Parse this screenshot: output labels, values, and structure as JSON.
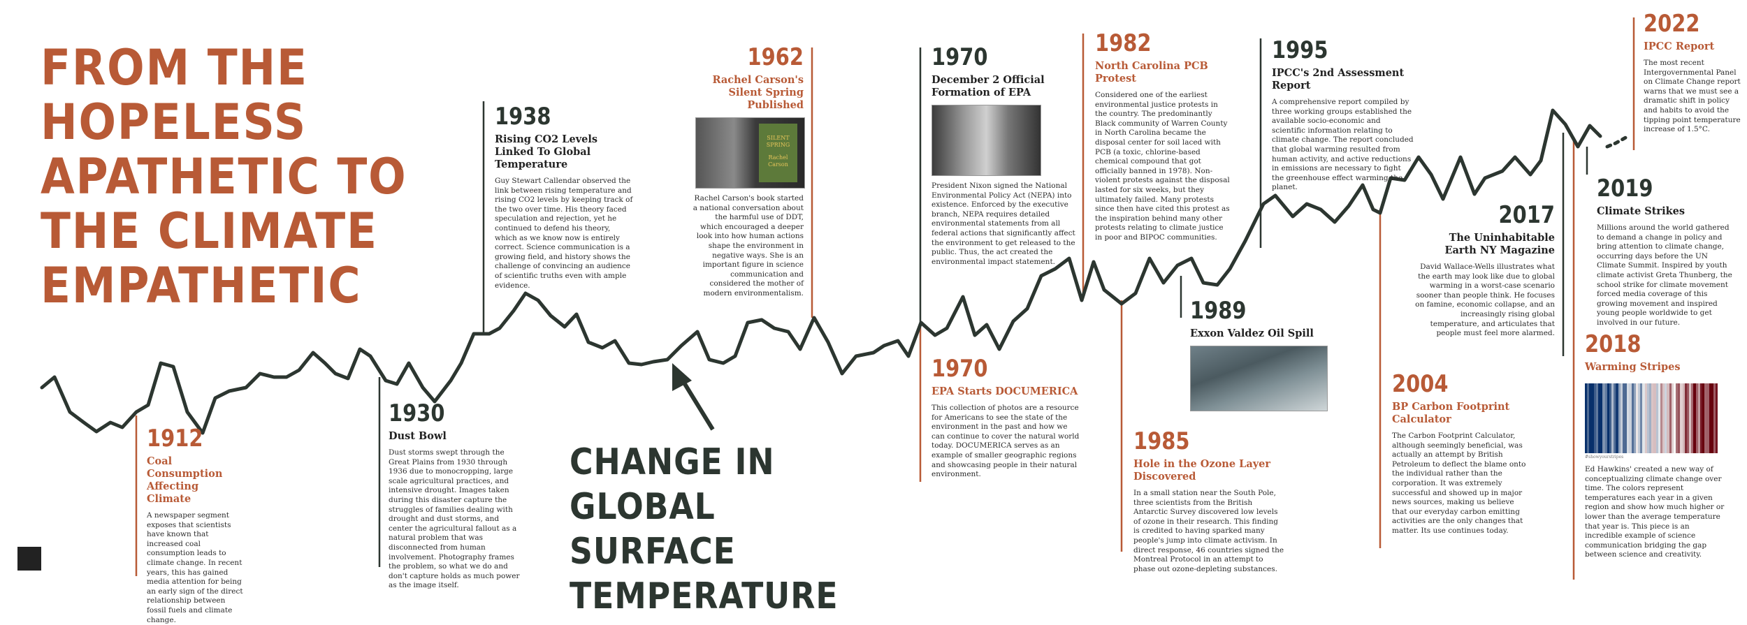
{
  "title": "FROM THE HOPELESS APATHETIC TO THE CLIMATE EMPATHETIC",
  "subtitle": "CHANGE IN GLOBAL SURFACE TEMPERATURE",
  "colors": {
    "rust": "#b85a36",
    "dark": "#2c3630"
  },
  "events": [
    {
      "year": "1912",
      "heading": "Coal Consumption Affecting Climate",
      "body": "A newspaper segment exposes that scientists have known that increased coal consumption leads to climate change. In recent years, this has gained media attention for being an early sign of the direct relationship between fossil fuels and climate change."
    },
    {
      "year": "1930",
      "heading": "Dust Bowl",
      "body": "Dust storms swept through the Great Plains from 1930 through 1936 due to monocropping, large scale agricultural practices, and intensive drought. Images taken during this disaster capture the struggles of families dealing with drought and dust storms, and center the agricultural fallout as a natural problem that was disconnected from human involvement. Photography frames the problem, so what we do and don't capture holds as much power as the image itself."
    },
    {
      "year": "1938",
      "heading": "Rising CO2 Levels Linked To Global Temperature",
      "body": "Guy Stewart Callendar observed the link between rising temperature and rising CO2 levels by keeping track of the two over time. His theory faced speculation and rejection, yet he continued to defend his theory, which as we know now is entirely correct. Science communication is a growing field, and history shows the challenge of convincing an audience of scientific truths even with ample evidence."
    },
    {
      "year": "1962",
      "heading": "Rachel Carson's Silent Spring Published",
      "body": "Rachel Carson's book started a national conversation about the harmful use of DDT, which encouraged a deeper look into how human actions shape the environment in negative ways. She is an important figure in science communication and considered the mother of modern environmentalism.",
      "book_text": [
        "SILENT",
        "SPRING",
        "Rachel",
        "Carson"
      ]
    },
    {
      "year": "1970",
      "heading": "December 2 Official Formation of EPA",
      "body": "President Nixon signed the National Environmental Policy Act (NEPA) into existence. Enforced by the executive branch, NEPA requires detailed environmental statements from all federal actions that significantly affect the environment to get released to the public. Thus, the act created the environmental impact statement."
    },
    {
      "year": "1970",
      "heading": "EPA Starts DOCUMERICA",
      "body": "This collection of photos are a resource for Americans to see the state of the environment in the past and how we can continue to cover the natural world today. DOCUMERICA serves as an example of smaller geographic regions and showcasing people in their natural environment."
    },
    {
      "year": "1982",
      "heading": "North Carolina PCB Protest",
      "body": "Considered one of the earliest environmental justice protests in the country. The predominantly Black community of Warren County in North Carolina became the disposal center for soil laced with PCB (a toxic, chlorine-based chemical compound that got officially banned in 1978). Non-violent protests against the disposal lasted for six weeks, but they ultimately failed. Many protests since then have cited this protest as the inspiration behind many other protests relating to climate justice in poor and BIPOC communities."
    },
    {
      "year": "1985",
      "heading": "Hole in the Ozone Layer Discovered",
      "body": "In a small station near the South Pole, three scientists from the British Antarctic Survey discovered low levels of ozone in their research. This finding is credited to having sparked many people's jump into climate activism. In direct response, 46 countries signed the Montreal Protocol in an attempt to phase out ozone-depleting substances."
    },
    {
      "year": "1989",
      "heading": "Exxon Valdez Oil Spill",
      "body": ""
    },
    {
      "year": "1995",
      "heading": "IPCC's 2nd Assessment Report",
      "body": "A comprehensive report compiled by three working groups established the available socio-economic and scientific information relating to climate change. The report concluded that global warming resulted from human activity, and active reductions in emissions are necessary to fight the greenhouse effect warming the planet."
    },
    {
      "year": "2004",
      "heading": "BP Carbon Footprint Calculator",
      "body": "The Carbon Footprint Calculator, although seemingly beneficial, was actually an attempt by British Petroleum to deflect the blame onto the individual rather than the corporation. It was extremely successful and showed up in major news sources, making us believe that our everyday carbon emitting activities are the only changes that matter. Its use continues today."
    },
    {
      "year": "2017",
      "heading": "The Uninhabitable Earth NY Magazine",
      "body": "David Wallace-Wells illustrates what the earth may look like due to global warming in a worst-case scenario sooner than people think. He focuses on famine, economic collapse, and an increasingly rising global temperature, and articulates that people must feel more alarmed."
    },
    {
      "year": "2018",
      "heading": "Warming Stripes",
      "caption": "#showyourstripes",
      "body": "Ed Hawkins' created a new way of conceptualizing climate change over time. The colors represent temperatures each year in a given region and show how much higher or lower than the average temperature that year is. This piece is an incredible example of science communication bridging the gap between science and creativity."
    },
    {
      "year": "2019",
      "heading": "Climate Strikes",
      "body": "Millions around the world gathered to demand a change in policy and bring attention to climate change, occurring days before the UN Climate Summit. Inspired by youth climate activist Greta Thunberg, the school strike for climate movement forced media coverage of this growing movement and inspired young people worldwide to get involved in our future."
    },
    {
      "year": "2022",
      "heading": "IPCC Report",
      "body": "The most recent Intergovernmental Panel on Climate Change report warns that we must see a dramatic shift in policy and habits to avoid the tipping point temperature increase of 1.5°C."
    }
  ]
}
